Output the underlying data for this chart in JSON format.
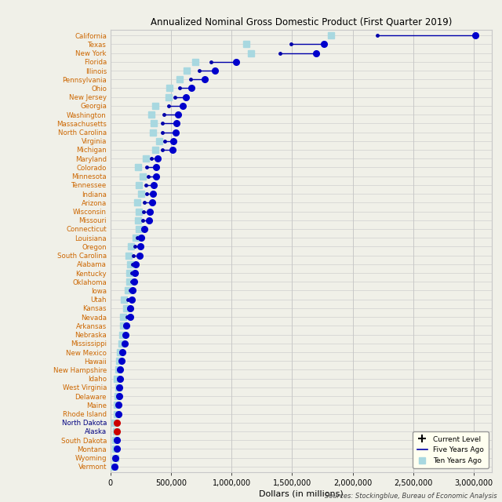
{
  "title": "Annualized Nominal Gross Domestic Product (First Quarter 2019)",
  "xlabel": "Dollars (in millions)",
  "source": "Sources: Stockingblue, Bureau of Economic Analysis",
  "states": [
    "California",
    "Texas",
    "New York",
    "Florida",
    "Illinois",
    "Pennsylvania",
    "Ohio",
    "New Jersey",
    "Georgia",
    "Washington",
    "Massachusetts",
    "North Carolina",
    "Virginia",
    "Michigan",
    "Maryland",
    "Colorado",
    "Minnesota",
    "Tennessee",
    "Indiana",
    "Arizona",
    "Wisconsin",
    "Missouri",
    "Connecticut",
    "Louisiana",
    "Oregon",
    "South Carolina",
    "Alabama",
    "Kentucky",
    "Oklahoma",
    "Iowa",
    "Utah",
    "Kansas",
    "Nevada",
    "Arkansas",
    "Nebraska",
    "Mississippi",
    "New Mexico",
    "Hawaii",
    "New Hampshire",
    "Idaho",
    "West Virginia",
    "Delaware",
    "Maine",
    "Rhode Island",
    "North Dakota",
    "Alaska",
    "South Dakota",
    "Montana",
    "Wyoming",
    "Vermont"
  ],
  "current": [
    3013000,
    1764000,
    1700000,
    1036000,
    861000,
    778000,
    670000,
    622000,
    600000,
    560000,
    545000,
    537000,
    520000,
    510000,
    388000,
    376000,
    374000,
    356000,
    350000,
    345000,
    325000,
    318000,
    280000,
    253000,
    248000,
    240000,
    210000,
    203000,
    196000,
    185000,
    175000,
    165000,
    163000,
    130000,
    127000,
    115000,
    97000,
    94000,
    81000,
    78000,
    74000,
    73000,
    65000,
    63000,
    56000,
    55000,
    51000,
    50000,
    41000,
    35000
  ],
  "five_years": [
    2200000,
    1490000,
    1400000,
    830000,
    730000,
    660000,
    570000,
    530000,
    480000,
    440000,
    430000,
    430000,
    450000,
    430000,
    340000,
    300000,
    315000,
    290000,
    300000,
    280000,
    275000,
    270000,
    265000,
    222000,
    200000,
    190000,
    185000,
    175000,
    177000,
    165000,
    145000,
    148000,
    135000,
    117000,
    115000,
    103000,
    88000,
    85000,
    73000,
    65000,
    66000,
    68000,
    58000,
    57000,
    52000,
    53000,
    47000,
    45000,
    40000,
    33000
  ],
  "ten_years": [
    1820000,
    1120000,
    1160000,
    700000,
    630000,
    570000,
    490000,
    480000,
    370000,
    340000,
    360000,
    350000,
    400000,
    370000,
    295000,
    230000,
    270000,
    235000,
    255000,
    220000,
    235000,
    225000,
    233000,
    210000,
    170000,
    153000,
    160000,
    155000,
    155000,
    145000,
    110000,
    130000,
    105000,
    103000,
    97000,
    95000,
    78000,
    72000,
    64000,
    52000,
    67000,
    58000,
    53000,
    51000,
    35000,
    47000,
    40000,
    38000,
    38000,
    29000
  ],
  "label_color_default": "#cc6600",
  "label_color_special": "#cc6600",
  "label_color_nd_ak": "#000080",
  "special_states": [
    "North Dakota",
    "Alaska"
  ],
  "dot_color_default": "#0000cc",
  "dot_color_special": "#cc0000",
  "special_dot_states": [
    "North Dakota",
    "Alaska"
  ],
  "bg_color": "#f0f0e8",
  "grid_color": "#c8c8c8",
  "ten_years_color": "#a8d8e0",
  "line_color": "#0000aa",
  "current_dot_color": "#0000cc",
  "legend_bg": "#fffff0",
  "xlim": [
    0,
    3150000
  ],
  "xticks": [
    0,
    500000,
    1000000,
    1500000,
    2000000,
    2500000,
    3000000
  ],
  "xtick_labels": [
    "0",
    "500,000",
    "1,000,000",
    "1,500,000",
    "2,000,000",
    "2,500,000",
    "3,000,000"
  ]
}
